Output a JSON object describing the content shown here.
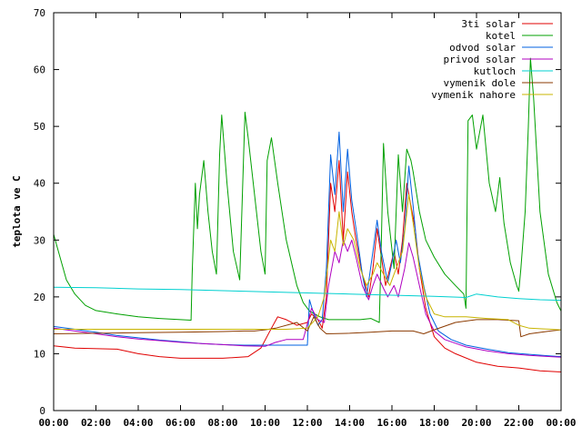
{
  "chart_data": {
    "type": "line",
    "title": "",
    "xlabel": "",
    "ylabel": "teplota ve C",
    "xlim": [
      0,
      24
    ],
    "ylim": [
      0,
      70
    ],
    "grid": false,
    "legend_position": "top-right",
    "x_ticks": [
      {
        "value": 0,
        "label": "00:00"
      },
      {
        "value": 2,
        "label": "02:00"
      },
      {
        "value": 4,
        "label": "04:00"
      },
      {
        "value": 6,
        "label": "06:00"
      },
      {
        "value": 8,
        "label": "08:00"
      },
      {
        "value": 10,
        "label": "10:00"
      },
      {
        "value": 12,
        "label": "12:00"
      },
      {
        "value": 14,
        "label": "14:00"
      },
      {
        "value": 16,
        "label": "16:00"
      },
      {
        "value": 18,
        "label": "18:00"
      },
      {
        "value": 20,
        "label": "20:00"
      },
      {
        "value": 22,
        "label": "22:00"
      },
      {
        "value": 24,
        "label": "00:00"
      }
    ],
    "y_ticks": [
      {
        "value": 0,
        "label": "0"
      },
      {
        "value": 10,
        "label": "10"
      },
      {
        "value": 20,
        "label": "20"
      },
      {
        "value": 30,
        "label": "30"
      },
      {
        "value": 40,
        "label": "40"
      },
      {
        "value": 50,
        "label": "50"
      },
      {
        "value": 60,
        "label": "60"
      },
      {
        "value": 70,
        "label": "70"
      }
    ],
    "series": [
      {
        "name": "3ti solar",
        "color": "#e00000",
        "points": [
          [
            0,
            11.4
          ],
          [
            1,
            11
          ],
          [
            3,
            10.8
          ],
          [
            4,
            10
          ],
          [
            5,
            9.5
          ],
          [
            6,
            9.2
          ],
          [
            8,
            9.2
          ],
          [
            9.2,
            9.5
          ],
          [
            9.8,
            11
          ],
          [
            10.3,
            14.5
          ],
          [
            10.6,
            16.5
          ],
          [
            11,
            16
          ],
          [
            11.5,
            15
          ],
          [
            12,
            15.5
          ],
          [
            12.2,
            17
          ],
          [
            12.5,
            16
          ],
          [
            12.7,
            14.5
          ],
          [
            12.9,
            20
          ],
          [
            13.1,
            40
          ],
          [
            13.3,
            35
          ],
          [
            13.5,
            44
          ],
          [
            13.7,
            30
          ],
          [
            13.9,
            42
          ],
          [
            14.1,
            35
          ],
          [
            14.3,
            30
          ],
          [
            14.6,
            24
          ],
          [
            14.9,
            20
          ],
          [
            15.1,
            25
          ],
          [
            15.3,
            32
          ],
          [
            15.5,
            27
          ],
          [
            15.7,
            22
          ],
          [
            15.9,
            25
          ],
          [
            16.1,
            28
          ],
          [
            16.3,
            24
          ],
          [
            16.5,
            30
          ],
          [
            16.7,
            40
          ],
          [
            16.9,
            36
          ],
          [
            17.1,
            32
          ],
          [
            17.3,
            25
          ],
          [
            17.6,
            18
          ],
          [
            18,
            13
          ],
          [
            18.5,
            11
          ],
          [
            19,
            10
          ],
          [
            20,
            8.5
          ],
          [
            21,
            7.8
          ],
          [
            22,
            7.5
          ],
          [
            23,
            7
          ],
          [
            24,
            6.8
          ]
        ]
      },
      {
        "name": "kotel",
        "color": "#00a000",
        "points": [
          [
            0,
            31
          ],
          [
            0.3,
            27
          ],
          [
            0.6,
            23
          ],
          [
            1,
            20.5
          ],
          [
            1.5,
            18.5
          ],
          [
            2,
            17.6
          ],
          [
            3,
            17
          ],
          [
            4,
            16.5
          ],
          [
            5,
            16.2
          ],
          [
            6,
            16
          ],
          [
            6.5,
            15.9
          ],
          [
            6.55,
            24
          ],
          [
            6.7,
            40
          ],
          [
            6.8,
            32
          ],
          [
            6.9,
            38
          ],
          [
            7.1,
            44
          ],
          [
            7.3,
            35
          ],
          [
            7.5,
            28
          ],
          [
            7.7,
            24
          ],
          [
            7.85,
            45
          ],
          [
            7.95,
            52
          ],
          [
            8.2,
            40
          ],
          [
            8.5,
            28
          ],
          [
            8.8,
            23
          ],
          [
            9.05,
            52.5
          ],
          [
            9.2,
            48
          ],
          [
            9.5,
            38
          ],
          [
            9.8,
            28
          ],
          [
            10,
            24
          ],
          [
            10.1,
            44
          ],
          [
            10.3,
            48
          ],
          [
            10.6,
            40
          ],
          [
            11,
            30
          ],
          [
            11.5,
            22
          ],
          [
            11.8,
            19
          ],
          [
            12.1,
            17.5
          ],
          [
            12.6,
            16.5
          ],
          [
            13,
            16
          ],
          [
            14,
            16
          ],
          [
            14.5,
            16
          ],
          [
            15,
            16.2
          ],
          [
            15.4,
            15.5
          ],
          [
            15.5,
            30
          ],
          [
            15.6,
            47
          ],
          [
            15.8,
            35
          ],
          [
            16.1,
            25
          ],
          [
            16.3,
            45
          ],
          [
            16.5,
            35
          ],
          [
            16.7,
            46
          ],
          [
            16.9,
            44
          ],
          [
            17,
            42
          ],
          [
            17.3,
            35
          ],
          [
            17.6,
            30
          ],
          [
            18,
            27
          ],
          [
            18.5,
            24
          ],
          [
            19,
            22
          ],
          [
            19.4,
            20.5
          ],
          [
            19.5,
            18
          ],
          [
            19.6,
            51
          ],
          [
            19.8,
            52
          ],
          [
            20,
            46
          ],
          [
            20.3,
            52
          ],
          [
            20.6,
            40
          ],
          [
            20.9,
            35
          ],
          [
            21.1,
            41
          ],
          [
            21.3,
            33
          ],
          [
            21.6,
            26
          ],
          [
            21.9,
            22
          ],
          [
            22,
            21
          ],
          [
            22.1,
            25
          ],
          [
            22.3,
            35
          ],
          [
            22.45,
            50
          ],
          [
            22.55,
            62
          ],
          [
            22.7,
            55
          ],
          [
            23,
            35
          ],
          [
            23.4,
            24
          ],
          [
            23.8,
            19
          ],
          [
            24,
            17.5
          ]
        ]
      },
      {
        "name": "odvod solar",
        "color": "#0060e0",
        "points": [
          [
            0,
            14.8
          ],
          [
            1,
            14.3
          ],
          [
            2,
            13.8
          ],
          [
            3,
            13.2
          ],
          [
            4,
            12.8
          ],
          [
            5,
            12.4
          ],
          [
            6,
            12.1
          ],
          [
            7,
            11.8
          ],
          [
            8,
            11.6
          ],
          [
            9,
            11.5
          ],
          [
            10,
            11.5
          ],
          [
            11,
            11.5
          ],
          [
            12,
            11.5
          ],
          [
            12.1,
            19.5
          ],
          [
            12.3,
            17
          ],
          [
            12.5,
            15
          ],
          [
            12.7,
            16
          ],
          [
            12.9,
            25
          ],
          [
            13.1,
            45
          ],
          [
            13.3,
            38
          ],
          [
            13.5,
            49
          ],
          [
            13.7,
            35
          ],
          [
            13.9,
            46
          ],
          [
            14.1,
            37
          ],
          [
            14.3,
            32
          ],
          [
            14.6,
            24
          ],
          [
            14.8,
            20
          ],
          [
            15.1,
            28
          ],
          [
            15.3,
            33.5
          ],
          [
            15.5,
            28
          ],
          [
            15.8,
            22.5
          ],
          [
            16,
            26
          ],
          [
            16.2,
            30
          ],
          [
            16.4,
            26
          ],
          [
            16.6,
            32
          ],
          [
            16.8,
            43
          ],
          [
            17,
            36
          ],
          [
            17.2,
            28
          ],
          [
            17.5,
            22
          ],
          [
            17.8,
            17
          ],
          [
            18.2,
            14
          ],
          [
            18.8,
            12.5
          ],
          [
            19.5,
            11.5
          ],
          [
            20.5,
            10.8
          ],
          [
            21.5,
            10.2
          ],
          [
            22.5,
            9.9
          ],
          [
            23.5,
            9.6
          ],
          [
            24,
            9.5
          ]
        ]
      },
      {
        "name": "privod solar",
        "color": "#b000c0",
        "points": [
          [
            0,
            14.5
          ],
          [
            1,
            14
          ],
          [
            2,
            13.5
          ],
          [
            3,
            13
          ],
          [
            4,
            12.6
          ],
          [
            5,
            12.3
          ],
          [
            6,
            12
          ],
          [
            7,
            11.8
          ],
          [
            8,
            11.6
          ],
          [
            9,
            11.4
          ],
          [
            10,
            11.3
          ],
          [
            10.5,
            12
          ],
          [
            11,
            12.5
          ],
          [
            11.8,
            12.5
          ],
          [
            12.2,
            18
          ],
          [
            12.5,
            16
          ],
          [
            12.8,
            15.5
          ],
          [
            13,
            22
          ],
          [
            13.3,
            28
          ],
          [
            13.5,
            26
          ],
          [
            13.7,
            30
          ],
          [
            13.9,
            28
          ],
          [
            14.1,
            30
          ],
          [
            14.3,
            27
          ],
          [
            14.6,
            22
          ],
          [
            14.9,
            19.5
          ],
          [
            15.1,
            22
          ],
          [
            15.3,
            24
          ],
          [
            15.6,
            21.5
          ],
          [
            15.8,
            20
          ],
          [
            16.1,
            22
          ],
          [
            16.3,
            20
          ],
          [
            16.6,
            25
          ],
          [
            16.8,
            29.5
          ],
          [
            17,
            27
          ],
          [
            17.3,
            22
          ],
          [
            17.6,
            17
          ],
          [
            18,
            14
          ],
          [
            18.5,
            12.5
          ],
          [
            19.5,
            11.2
          ],
          [
            20.5,
            10.5
          ],
          [
            21.5,
            10
          ],
          [
            22.5,
            9.7
          ],
          [
            23.5,
            9.5
          ],
          [
            24,
            9.4
          ]
        ]
      },
      {
        "name": "kutloch",
        "color": "#00d0d0",
        "points": [
          [
            0,
            21.7
          ],
          [
            2,
            21.6
          ],
          [
            4,
            21.4
          ],
          [
            6,
            21.3
          ],
          [
            8,
            21.1
          ],
          [
            10,
            20.9
          ],
          [
            12,
            20.7
          ],
          [
            14,
            20.5
          ],
          [
            16,
            20.3
          ],
          [
            18,
            20.1
          ],
          [
            19.5,
            19.9
          ],
          [
            20,
            20.5
          ],
          [
            21,
            20
          ],
          [
            22,
            19.7
          ],
          [
            23,
            19.5
          ],
          [
            24,
            19.4
          ]
        ]
      },
      {
        "name": "vymenik dole",
        "color": "#8b3a00",
        "points": [
          [
            0,
            13.5
          ],
          [
            2,
            13.6
          ],
          [
            4,
            13.7
          ],
          [
            6,
            13.8
          ],
          [
            8,
            13.9
          ],
          [
            9,
            14
          ],
          [
            9.5,
            14
          ],
          [
            10,
            14.2
          ],
          [
            10.5,
            14.5
          ],
          [
            11.5,
            15.5
          ],
          [
            12,
            14
          ],
          [
            12.3,
            16.5
          ],
          [
            12.6,
            14.5
          ],
          [
            12.9,
            13.5
          ],
          [
            14,
            13.6
          ],
          [
            15,
            13.8
          ],
          [
            16,
            14
          ],
          [
            17,
            14
          ],
          [
            17.5,
            13.5
          ],
          [
            18,
            14.2
          ],
          [
            19,
            15.5
          ],
          [
            20,
            16
          ],
          [
            21,
            16
          ],
          [
            22,
            15.8
          ],
          [
            22.1,
            13
          ],
          [
            22.5,
            13.5
          ],
          [
            23.5,
            14
          ],
          [
            24,
            14.2
          ]
        ]
      },
      {
        "name": "vymenik nahore",
        "color": "#c8b400",
        "points": [
          [
            0,
            14.3
          ],
          [
            2,
            14.3
          ],
          [
            4,
            14.3
          ],
          [
            6,
            14.3
          ],
          [
            8,
            14.3
          ],
          [
            10,
            14.3
          ],
          [
            11,
            14.3
          ],
          [
            12,
            14.5
          ],
          [
            12.5,
            16.5
          ],
          [
            12.8,
            20
          ],
          [
            13.1,
            30
          ],
          [
            13.3,
            28
          ],
          [
            13.5,
            35
          ],
          [
            13.7,
            29
          ],
          [
            13.9,
            32
          ],
          [
            14.2,
            30
          ],
          [
            14.5,
            25
          ],
          [
            14.8,
            22
          ],
          [
            15.1,
            24
          ],
          [
            15.3,
            26
          ],
          [
            15.6,
            24
          ],
          [
            15.9,
            22
          ],
          [
            16.2,
            25
          ],
          [
            16.5,
            28
          ],
          [
            16.8,
            38
          ],
          [
            17,
            33
          ],
          [
            17.3,
            25
          ],
          [
            17.6,
            20
          ],
          [
            18,
            17
          ],
          [
            18.5,
            16.5
          ],
          [
            19.5,
            16.5
          ],
          [
            20.5,
            16.2
          ],
          [
            21.5,
            16
          ],
          [
            22,
            15
          ],
          [
            22.5,
            14.5
          ],
          [
            23.5,
            14.3
          ],
          [
            24,
            14.2
          ]
        ]
      }
    ]
  }
}
